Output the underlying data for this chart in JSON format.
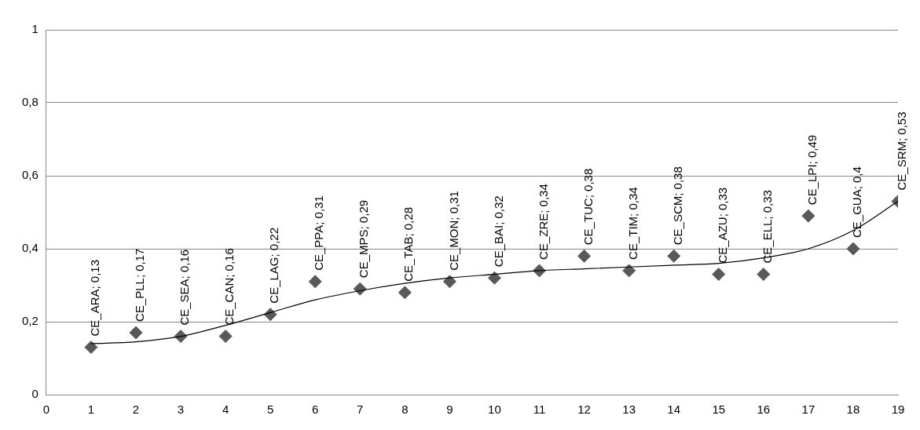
{
  "chart_data": {
    "type": "scatter",
    "x": [
      1,
      2,
      3,
      4,
      5,
      6,
      7,
      8,
      9,
      10,
      11,
      12,
      13,
      14,
      15,
      16,
      17,
      18,
      19
    ],
    "series": [
      {
        "color": "#595959",
        "marker": "diamond",
        "values": [
          0.13,
          0.17,
          0.16,
          0.16,
          0.22,
          0.31,
          0.29,
          0.28,
          0.31,
          0.32,
          0.34,
          0.38,
          0.34,
          0.38,
          0.33,
          0.33,
          0.49,
          0.4,
          0.53
        ],
        "value_labels": [
          "CE_ARA; 0,13",
          "CE_PLL; 0,17",
          "CE_SEA; 0,16",
          "CE_CAN; 0,16",
          "CE_LAG; 0,22",
          "CE_PPA; 0,31",
          "CE_MPS; 0,29",
          "CE_TAB; 0,28",
          "CE_MON; 0,31",
          "CE_BAI; 0,32",
          "CE_ZRE; 0,34",
          "CE_TUC; 0,38",
          "CE_TIM; 0,34",
          "CE_SCM; 0,38",
          "CE_AZU; 0,33",
          "CE_ELL; 0,33",
          "CE_LPI; 0,49",
          "CE_GUA; 0,4",
          "CE_SRM; 0,53"
        ]
      },
      {
        "type": "line",
        "color": "#000000",
        "marker": "none",
        "x": [
          1,
          2,
          3,
          4,
          5,
          6,
          7,
          8,
          9,
          10,
          11,
          12,
          13,
          14,
          15,
          16,
          17,
          18,
          19
        ],
        "values": [
          0.14,
          0.145,
          0.16,
          0.19,
          0.225,
          0.26,
          0.285,
          0.305,
          0.32,
          0.33,
          0.34,
          0.345,
          0.35,
          0.355,
          0.36,
          0.375,
          0.4,
          0.45,
          0.53
        ]
      }
    ],
    "xlim": [
      0,
      19
    ],
    "xticks": [
      0,
      1,
      2,
      3,
      4,
      5,
      6,
      7,
      8,
      9,
      10,
      11,
      12,
      13,
      14,
      15,
      16,
      17,
      18,
      19
    ],
    "ylim": [
      0,
      1
    ],
    "yticks": [
      0,
      {
        "value": 0.2,
        "label": "0,2"
      },
      {
        "value": 0.4,
        "label": "0,4"
      },
      {
        "value": 0.6,
        "label": "0,6"
      },
      {
        "value": 0.8,
        "label": "0,8"
      },
      1
    ],
    "grid": "y",
    "legend": false
  }
}
